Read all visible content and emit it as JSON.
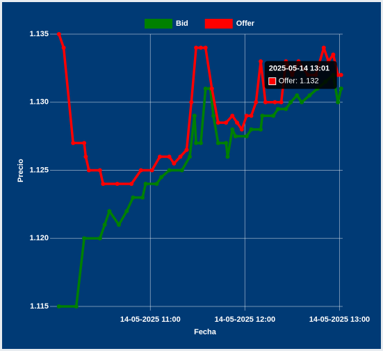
{
  "chart_data": {
    "type": "line",
    "x_label": "Fecha",
    "y_label": "Precio",
    "xlim": [
      "2025-05-14 09:59",
      "2025-05-14 13:02"
    ],
    "xticks": [
      {
        "value": "2025-05-14 11:00",
        "label": "14-05-2025 11:00"
      },
      {
        "value": "2025-05-14 12:00",
        "label": "14-05-2025 12:00"
      },
      {
        "value": "2025-05-14 13:00",
        "label": "14-05-2025 13:00"
      }
    ],
    "ylim": [
      1.115,
      1.135
    ],
    "yticks": [
      1.115,
      {
        "value": 1.12,
        "label": "1.120"
      },
      1.125,
      {
        "value": 1.13,
        "label": "1.130"
      },
      1.135
    ],
    "grid": true,
    "legend": "top",
    "series": [
      {
        "name": "Bid",
        "color": "#008000",
        "x": [
          "2025-05-14 10:02",
          "2025-05-14 10:13",
          "2025-05-14 10:18",
          "2025-05-14 10:28",
          "2025-05-14 10:31",
          "2025-05-14 10:34",
          "2025-05-14 10:40",
          "2025-05-14 10:45",
          "2025-05-14 10:49",
          "2025-05-14 10:55",
          "2025-05-14 10:57",
          "2025-05-14 11:04",
          "2025-05-14 11:07",
          "2025-05-14 11:12",
          "2025-05-14 11:20",
          "2025-05-14 11:25",
          "2025-05-14 11:28",
          "2025-05-14 11:29",
          "2025-05-14 11:32",
          "2025-05-14 11:35",
          "2025-05-14 11:38",
          "2025-05-14 11:40",
          "2025-05-14 11:43",
          "2025-05-14 11:48",
          "2025-05-14 11:49",
          "2025-05-14 11:52",
          "2025-05-14 11:54",
          "2025-05-14 12:01",
          "2025-05-14 12:04",
          "2025-05-14 12:10",
          "2025-05-14 12:11",
          "2025-05-14 12:18",
          "2025-05-14 12:21",
          "2025-05-14 12:26",
          "2025-05-14 12:29",
          "2025-05-14 12:33",
          "2025-05-14 12:36",
          "2025-05-14 12:41",
          "2025-05-14 12:46",
          "2025-05-14 12:51",
          "2025-05-14 12:56",
          "2025-05-14 12:59",
          "2025-05-14 13:01"
        ],
        "values": [
          1.115,
          1.115,
          1.12,
          1.12,
          1.121,
          1.122,
          1.121,
          1.122,
          1.123,
          1.123,
          1.124,
          1.124,
          1.1245,
          1.125,
          1.125,
          1.126,
          1.129,
          1.127,
          1.127,
          1.131,
          1.131,
          1.129,
          1.127,
          1.127,
          1.126,
          1.128,
          1.1275,
          1.1275,
          1.128,
          1.128,
          1.129,
          1.129,
          1.1295,
          1.1295,
          1.13,
          1.1305,
          1.13,
          1.1305,
          1.131,
          1.1315,
          1.132,
          1.13,
          1.131
        ]
      },
      {
        "name": "Offer",
        "color": "#ff0000",
        "x": [
          "2025-05-14 10:02",
          "2025-05-14 10:05",
          "2025-05-14 10:11",
          "2025-05-14 10:18",
          "2025-05-14 10:19",
          "2025-05-14 10:21",
          "2025-05-14 10:28",
          "2025-05-14 10:30",
          "2025-05-14 10:39",
          "2025-05-14 10:48",
          "2025-05-14 10:54",
          "2025-05-14 11:01",
          "2025-05-14 11:06",
          "2025-05-14 11:12",
          "2025-05-14 11:15",
          "2025-05-14 11:19",
          "2025-05-14 11:23",
          "2025-05-14 11:26",
          "2025-05-14 11:29",
          "2025-05-14 11:32",
          "2025-05-14 11:35",
          "2025-05-14 11:39",
          "2025-05-14 11:43",
          "2025-05-14 11:48",
          "2025-05-14 11:52",
          "2025-05-14 11:55",
          "2025-05-14 11:58",
          "2025-05-14 12:01",
          "2025-05-14 12:04",
          "2025-05-14 12:07",
          "2025-05-14 12:10",
          "2025-05-14 12:13",
          "2025-05-14 12:19",
          "2025-05-14 12:23",
          "2025-05-14 12:26",
          "2025-05-14 12:30",
          "2025-05-14 12:34",
          "2025-05-14 12:40",
          "2025-05-14 12:45",
          "2025-05-14 12:50",
          "2025-05-14 12:53",
          "2025-05-14 12:56",
          "2025-05-14 12:59",
          "2025-05-14 13:01"
        ],
        "values": [
          1.135,
          1.134,
          1.127,
          1.127,
          1.126,
          1.125,
          1.125,
          1.124,
          1.124,
          1.124,
          1.125,
          1.125,
          1.126,
          1.126,
          1.1255,
          1.126,
          1.1265,
          1.13,
          1.134,
          1.134,
          1.134,
          1.131,
          1.1285,
          1.1285,
          1.129,
          1.1285,
          1.128,
          1.129,
          1.129,
          1.13,
          1.133,
          1.13,
          1.13,
          1.13,
          1.133,
          1.132,
          1.133,
          1.132,
          1.132,
          1.134,
          1.133,
          1.1335,
          1.132,
          1.132
        ]
      }
    ]
  }
}
